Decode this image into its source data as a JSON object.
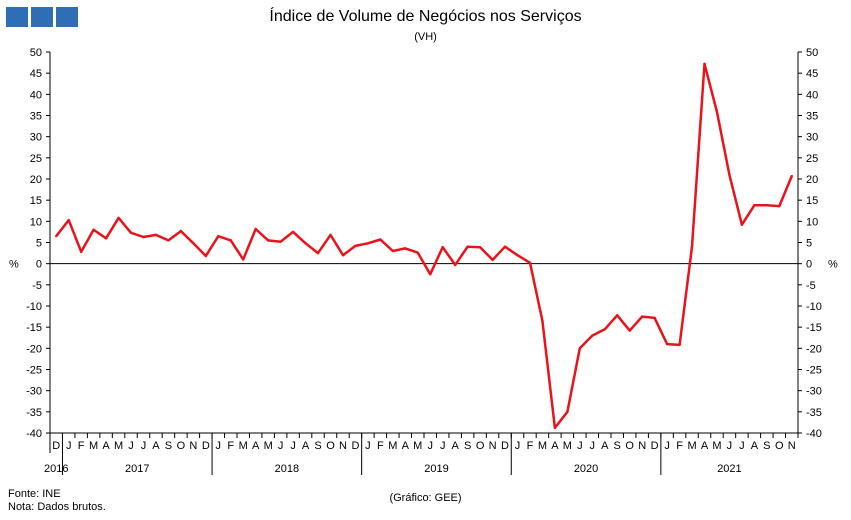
{
  "header": {
    "logo_icon": "institutional-logo-blue-squares",
    "title": "Índice de Volume de Negócios nos Serviços",
    "subtitle": "(VH)"
  },
  "footer": {
    "source": "Fonte: INE",
    "note": "Nota: Dados brutos.",
    "credit": "(Gráfico: GEE)"
  },
  "chart_data": {
    "type": "line",
    "title": "Índice de Volume de Negócios nos Serviços",
    "subtitle": "(VH)",
    "ylabel": "%",
    "ylim": [
      -40,
      50
    ],
    "yticks": [
      50,
      45,
      40,
      35,
      30,
      25,
      20,
      15,
      10,
      5,
      0,
      -5,
      -10,
      -15,
      -20,
      -25,
      -30,
      -35,
      -40
    ],
    "grid": false,
    "legend": "none",
    "line_color": "#e8131b",
    "month_labels": [
      "D",
      "J",
      "F",
      "M",
      "A",
      "M",
      "J",
      "J",
      "A",
      "S",
      "O",
      "N",
      "D",
      "J",
      "F",
      "M",
      "A",
      "M",
      "J",
      "J",
      "A",
      "S",
      "O",
      "N",
      "D",
      "J",
      "F",
      "M",
      "A",
      "M",
      "J",
      "J",
      "A",
      "S",
      "O",
      "N",
      "D",
      "J",
      "F",
      "M",
      "A",
      "M",
      "J",
      "J",
      "A",
      "S",
      "O",
      "N",
      "D",
      "J",
      "F",
      "M",
      "A",
      "M",
      "J",
      "J",
      "A",
      "S",
      "O",
      "N"
    ],
    "year_labels": [
      {
        "label": "2016",
        "start": 0,
        "end": 0
      },
      {
        "label": "2017",
        "start": 1,
        "end": 12
      },
      {
        "label": "2018",
        "start": 13,
        "end": 24
      },
      {
        "label": "2019",
        "start": 25,
        "end": 36
      },
      {
        "label": "2020",
        "start": 37,
        "end": 48
      },
      {
        "label": "2021",
        "start": 49,
        "end": 59
      }
    ],
    "series": [
      {
        "values": [
          6.5,
          10.3,
          2.8,
          8.0,
          6.0,
          10.8,
          7.3,
          6.3,
          6.8,
          5.5,
          7.7,
          4.8,
          1.8,
          6.5,
          5.5,
          1.0,
          8.2,
          5.5,
          5.2,
          7.5,
          4.8,
          2.5,
          6.8,
          2.0,
          4.2,
          4.8,
          5.7,
          3.0,
          3.6,
          2.6,
          -2.5,
          3.9,
          -0.3,
          4.0,
          3.9,
          0.9,
          4.0,
          2.0,
          0.2,
          -13.5,
          -38.8,
          -35.0,
          -20.0,
          -17.0,
          -15.5,
          -12.2,
          -15.8,
          -12.5,
          -12.8,
          -19.0,
          -19.2,
          4.0,
          47.2,
          35.8,
          21.0,
          9.2,
          13.8,
          13.8,
          13.6,
          20.7
        ]
      }
    ]
  }
}
